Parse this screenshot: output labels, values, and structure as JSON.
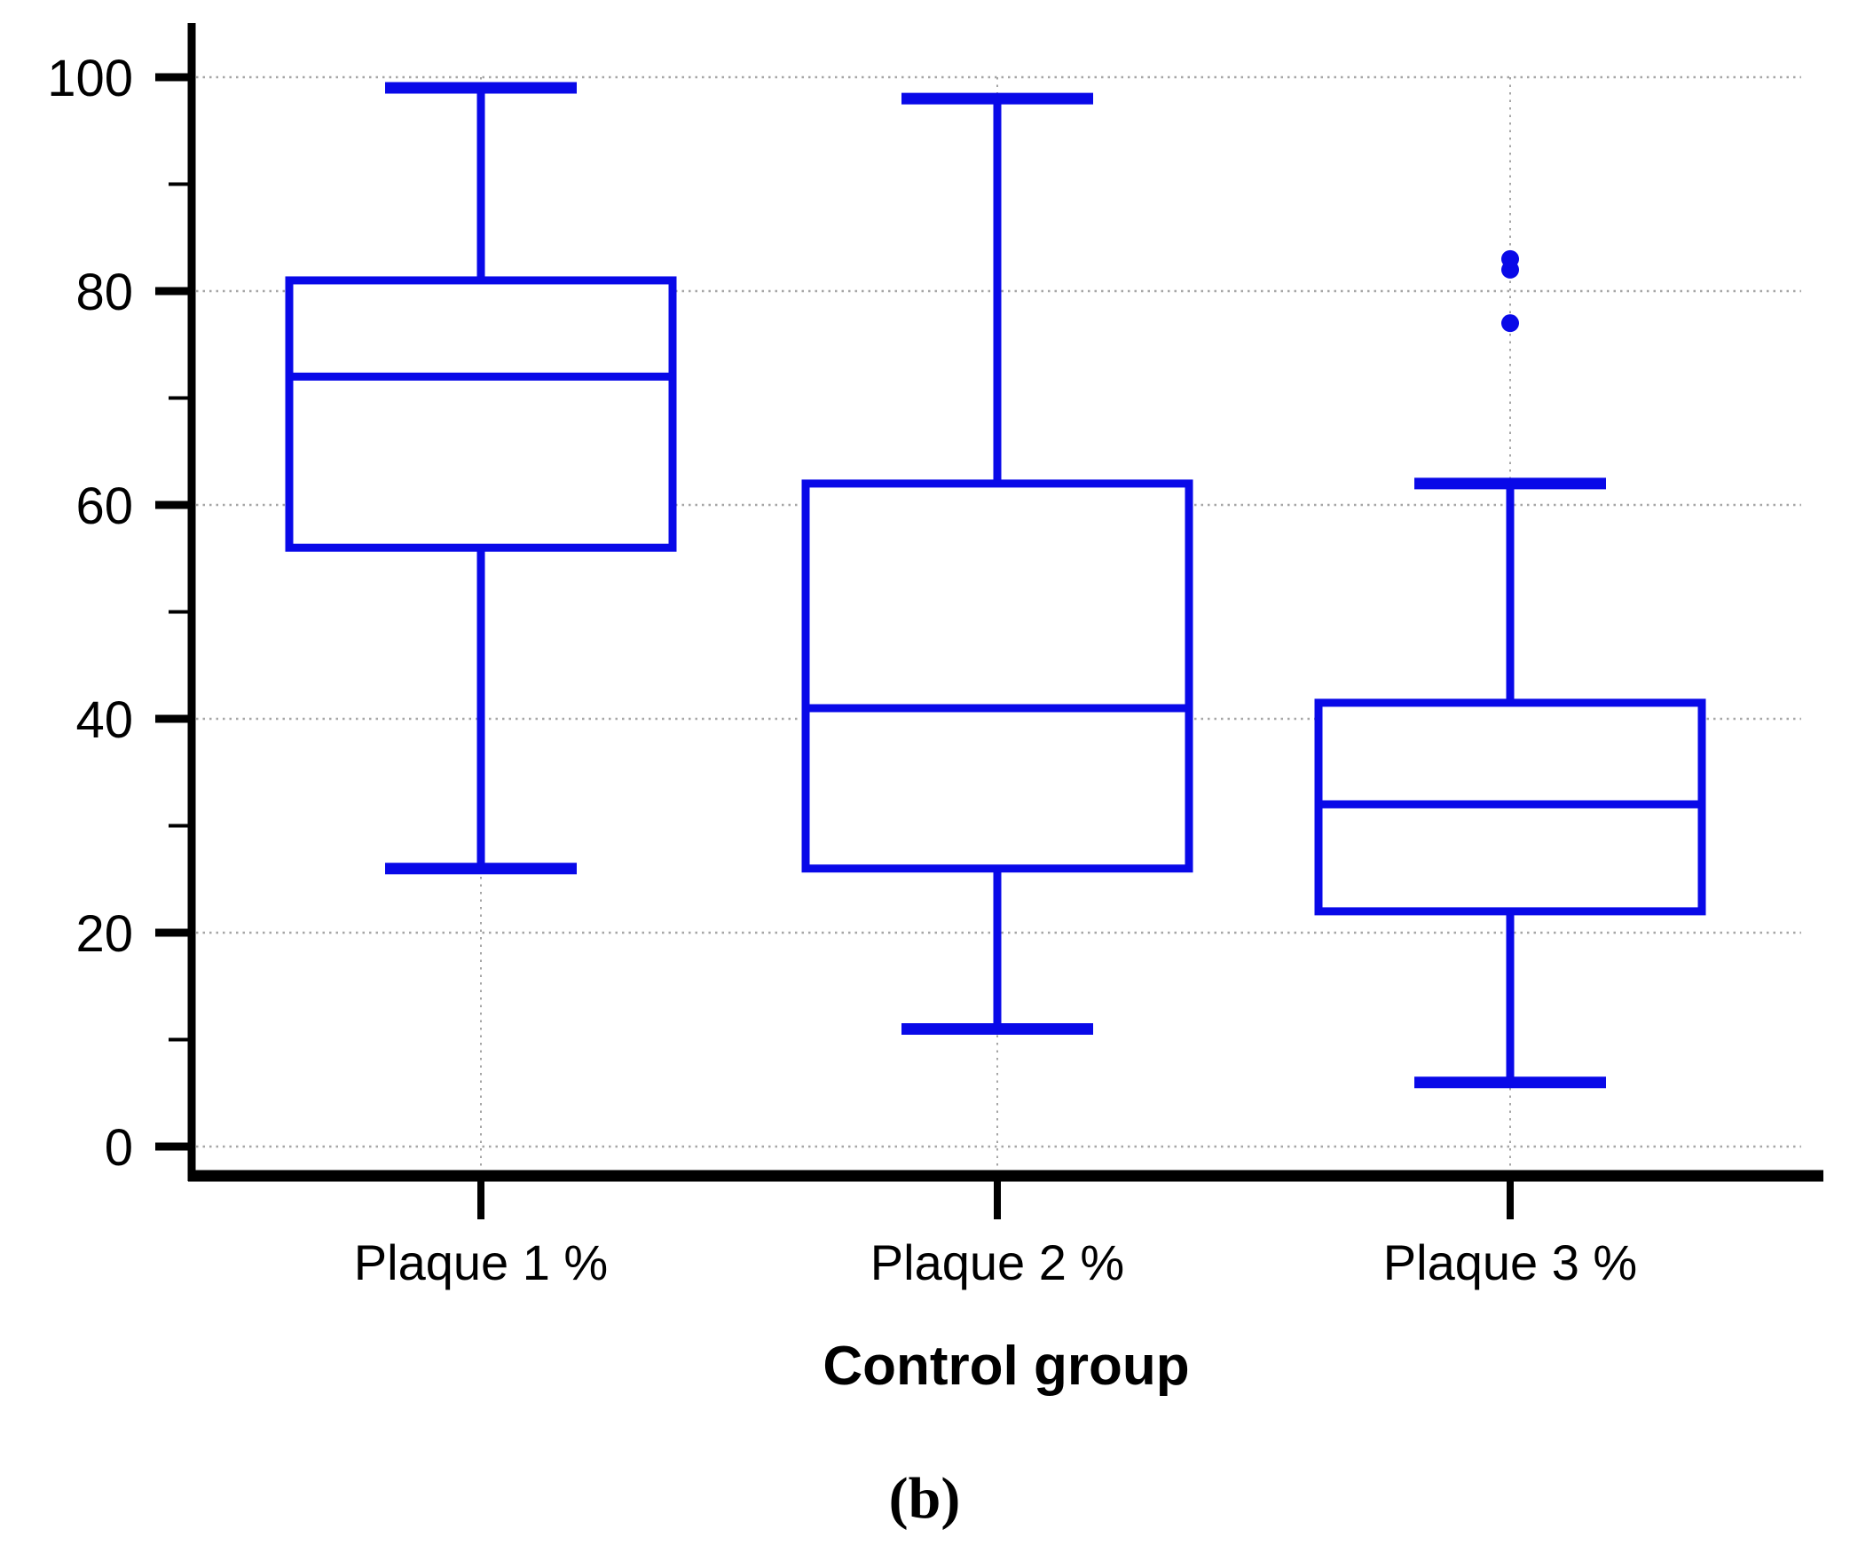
{
  "figure": {
    "caption": "(b)"
  },
  "chart_data": {
    "type": "box",
    "title": "",
    "xlabel": "Control group",
    "ylabel": "",
    "ylim": [
      0,
      100
    ],
    "yticks": [
      0,
      20,
      40,
      60,
      80,
      100
    ],
    "minor_yticks": [
      10,
      30,
      50,
      70,
      90
    ],
    "grid": {
      "horizontal": "dotted gray lines at major y ticks",
      "vertical": "dotted gray lines at each category center"
    },
    "legend_position": "none",
    "categories": [
      "Plaque 1 %",
      "Plaque 2 %",
      "Plaque 3 %"
    ],
    "series": [
      {
        "name": "Plaque 1 %",
        "whisker_low": 26,
        "q1": 56,
        "median": 72,
        "q3": 81,
        "whisker_high": 99,
        "outliers": []
      },
      {
        "name": "Plaque 2 %",
        "whisker_low": 11,
        "q1": 26,
        "median": 41,
        "q3": 62,
        "whisker_high": 98,
        "outliers": []
      },
      {
        "name": "Plaque 3 %",
        "whisker_low": 6,
        "q1": 22,
        "median": 32,
        "q3": 41.5,
        "whisker_high": 62,
        "outliers": [
          77,
          82,
          83
        ]
      }
    ],
    "colors": {
      "box": "#0909e8",
      "axis": "#000000",
      "grid": "#a6a6a6",
      "text": "#000000",
      "background": "#ffffff"
    }
  }
}
